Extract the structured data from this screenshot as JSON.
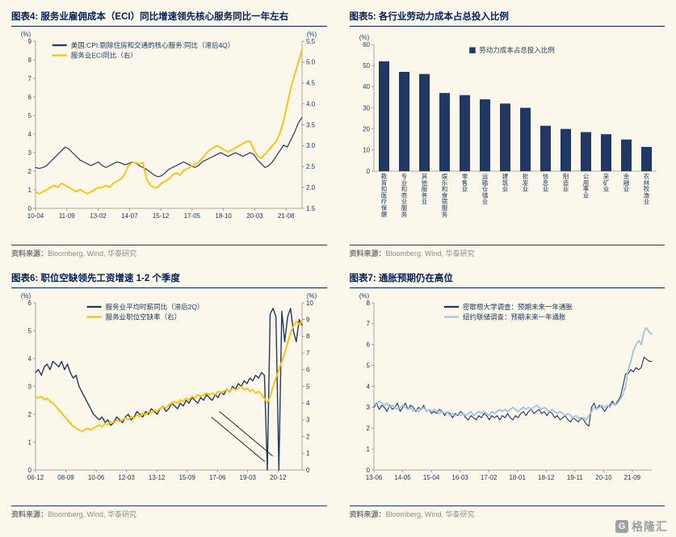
{
  "colors": {
    "navy": "#1F3864",
    "gold": "#FFC000",
    "light_blue": "#9DC3E6",
    "title_navy": "#00205B",
    "axis_gray": "#8F8F8F",
    "source_gray": "#8C8C8C",
    "background": "#FCF7EB"
  },
  "watermark": {
    "icon": "G",
    "text": "格隆汇"
  },
  "panels": [
    {
      "title": "图表4:  服务业雇佣成本（ECI）同比增速领先核心服务同比一年左右",
      "source_label": "资料来源：",
      "source": "Bloomberg, Wind, 华泰研究"
    },
    {
      "title": "图表5:  各行业劳动力成本占总投入比例",
      "source_label": "资料来源：",
      "source": "Bloomberg, Wind, 华泰研究"
    },
    {
      "title": "图表6:  职位空缺领先工资增速 1-2 个季度",
      "source_label": "资料来源：",
      "source": "Bloomberg, Wind, 华泰研究"
    },
    {
      "title": "图表7:  通胀预期仍在高位",
      "source_label": "资料来源：",
      "source": "Bloomberg, Wind, 华泰研究"
    }
  ],
  "chart_data": [
    {
      "type": "line",
      "title": "服务业雇佣成本（ECI）同比增速领先核心服务同比一年左右",
      "left_axis": {
        "label": "(%)",
        "min": 0,
        "max": 9,
        "step": 1
      },
      "right_axis": {
        "label": "(%)",
        "min": 1.5,
        "max": 5.5,
        "step": 0.5
      },
      "x_ticks": [
        "10-04",
        "11-09",
        "13-02",
        "14-07",
        "15-12",
        "17-05",
        "18-10",
        "20-03",
        "21-08"
      ],
      "x_tick_end": 0.94,
      "legend": {
        "x": 0.13,
        "y": 8,
        "marker": "line"
      },
      "series": [
        {
          "name": "美国:CPI:剔除住房和交通的核心服务:同比（滞后4Q）",
          "axis": "left",
          "color": "#1F3864",
          "width": 1.2,
          "values": [
            2.2,
            2.15,
            2.2,
            2.3,
            2.5,
            2.7,
            2.9,
            3.1,
            3.3,
            3.2,
            3.0,
            2.8,
            2.6,
            2.5,
            2.4,
            2.3,
            2.4,
            2.5,
            2.3,
            2.2,
            2.3,
            2.4,
            2.5,
            2.45,
            2.35,
            2.4,
            2.5,
            2.45,
            2.3,
            2.2,
            2.1,
            1.95,
            1.8,
            1.7,
            1.75,
            1.9,
            2.1,
            2.2,
            2.3,
            2.4,
            2.5,
            2.4,
            2.3,
            2.2,
            2.3,
            2.5,
            2.6,
            2.7,
            2.8,
            2.9,
            3.0,
            2.9,
            2.8,
            2.9,
            3.0,
            2.9,
            2.8,
            2.9,
            3.0,
            2.9,
            2.6,
            2.4,
            2.2,
            2.3,
            2.5,
            2.8,
            3.1,
            3.4,
            3.3,
            3.7,
            4.1,
            4.6,
            4.9
          ]
        },
        {
          "name": "服务业ECI同比（右）",
          "axis": "right",
          "color": "#FFC000",
          "width": 1.8,
          "values": [
            1.9,
            1.85,
            1.9,
            1.95,
            2.0,
            2.05,
            2.0,
            2.1,
            2.05,
            2.0,
            1.95,
            1.9,
            1.95,
            1.9,
            1.85,
            1.9,
            1.95,
            2.0,
            2.0,
            2.05,
            2.0,
            2.1,
            2.15,
            2.2,
            2.3,
            2.5,
            2.6,
            2.6,
            2.55,
            2.6,
            2.2,
            2.05,
            2.0,
            2.0,
            2.1,
            2.15,
            2.2,
            2.3,
            2.35,
            2.3,
            2.4,
            2.45,
            2.5,
            2.55,
            2.6,
            2.7,
            2.8,
            2.9,
            2.95,
            3.0,
            2.95,
            2.9,
            2.85,
            2.9,
            2.95,
            3.0,
            3.05,
            3.1,
            3.1,
            2.9,
            2.75,
            2.7,
            2.8,
            2.9,
            3.0,
            3.1,
            3.3,
            3.6,
            4.0,
            4.4,
            4.7,
            5.0,
            5.3
          ]
        }
      ]
    },
    {
      "type": "bar",
      "title": "各行业劳动力成本占总投入比例",
      "left_axis": {
        "label": "(%)",
        "min": 0,
        "max": 60,
        "step": 10
      },
      "categories": [
        "教育和医疗保健",
        "专业和商业服务",
        "其他服务业",
        "娱乐和食宿服务",
        "零售业",
        "运输仓储业",
        "建筑业",
        "批发业",
        "信息业",
        "制造业",
        "公用事业",
        "采矿业",
        "金融业",
        "农林牧渔业"
      ],
      "legend": {
        "x": 0.38,
        "y": 10,
        "marker": "square"
      },
      "series": [
        {
          "name": "劳动力成本占总投入比例",
          "color": "#1F3864",
          "values": [
            52,
            47,
            46,
            37,
            36,
            34,
            32,
            30,
            21.5,
            20,
            18.5,
            17.5,
            15,
            11.5
          ]
        }
      ]
    },
    {
      "type": "line",
      "title": "职位空缺领先工资增速 1-2 个季度",
      "left_axis": {
        "label": "(%)",
        "min": 0,
        "max": 6,
        "step": 1
      },
      "right_axis": {
        "label": "(%)",
        "min": 0,
        "max": 10,
        "step": 1
      },
      "x_ticks": [
        "06-12",
        "08-09",
        "10-06",
        "12-03",
        "13-12",
        "15-09",
        "17-06",
        "19-03",
        "20-12"
      ],
      "x_tick_end": 0.91,
      "legend": {
        "x": 0.24,
        "y": 8,
        "marker": "line"
      },
      "break_lines": [
        [
          0.66,
          1.9,
          0.86,
          0.3
        ],
        [
          0.69,
          2.1,
          0.89,
          0.5
        ]
      ],
      "series": [
        {
          "name": "服务业平均时薪同比（滞后2Q）",
          "axis": "left",
          "color": "#1F3864",
          "width": 1.4,
          "values": [
            3.5,
            3.6,
            3.4,
            3.7,
            3.8,
            3.6,
            3.9,
            3.8,
            3.7,
            3.9,
            3.6,
            3.8,
            3.5,
            3.3,
            3.4,
            3.0,
            2.8,
            2.6,
            2.4,
            2.2,
            2.0,
            1.9,
            1.8,
            1.9,
            1.7,
            1.8,
            1.6,
            1.7,
            1.9,
            1.8,
            1.7,
            1.9,
            2.0,
            1.8,
            1.9,
            2.1,
            2.0,
            1.9,
            2.1,
            2.0,
            2.2,
            2.1,
            2.0,
            2.2,
            2.3,
            2.1,
            2.2,
            2.4,
            2.3,
            2.2,
            2.4,
            2.3,
            2.5,
            2.4,
            2.6,
            2.5,
            2.4,
            2.6,
            2.5,
            2.7,
            2.6,
            2.5,
            2.7,
            2.6,
            2.8,
            2.7,
            2.9,
            2.8,
            3.0,
            2.9,
            3.1,
            3.0,
            3.2,
            3.1,
            3.3,
            3.2,
            3.4,
            3.3,
            3.5,
            3.4,
            0.0,
            5.6,
            5.8,
            5.5,
            0.0,
            5.7,
            4.6,
            5.5,
            5.8,
            5.0,
            4.6,
            5.4,
            5.2
          ]
        },
        {
          "name": "服务业职位空缺率（右）",
          "axis": "right",
          "color": "#FFC000",
          "width": 1.8,
          "values": [
            4.4,
            4.3,
            4.4,
            4.2,
            4.3,
            4.1,
            4.0,
            3.8,
            3.6,
            3.4,
            3.2,
            3.0,
            2.8,
            2.6,
            2.5,
            2.4,
            2.3,
            2.4,
            2.5,
            2.4,
            2.5,
            2.6,
            2.7,
            2.6,
            2.8,
            2.7,
            2.9,
            2.8,
            3.0,
            2.9,
            3.0,
            3.1,
            3.0,
            3.2,
            3.1,
            3.3,
            3.2,
            3.4,
            3.3,
            3.5,
            3.4,
            3.6,
            3.5,
            3.7,
            3.8,
            3.7,
            3.9,
            4.0,
            4.1,
            4.0,
            4.2,
            4.1,
            4.3,
            4.2,
            4.4,
            4.3,
            4.5,
            4.4,
            4.5,
            4.6,
            4.5,
            4.6,
            4.5,
            4.7,
            4.6,
            4.7,
            4.8,
            4.7,
            4.9,
            4.8,
            4.9,
            5.0,
            4.8,
            4.9,
            4.7,
            4.8,
            4.6,
            4.7,
            4.5,
            4.3,
            4.0,
            4.4,
            5.0,
            5.5,
            6.0,
            6.5,
            7.0,
            7.6,
            8.2,
            8.6,
            8.9,
            8.7,
            8.9
          ]
        }
      ]
    },
    {
      "type": "line",
      "title": "通胀预期仍在高位",
      "left_axis": {
        "label": "(%)",
        "min": 0,
        "max": 8,
        "step": 1
      },
      "x_ticks": [
        "13-06",
        "14-05",
        "15-04",
        "16-03",
        "17-02",
        "18-01",
        "18-12",
        "19-11",
        "20-10",
        "21-09"
      ],
      "x_tick_end": 0.93,
      "legend": {
        "x": 0.3,
        "y": 8,
        "marker": "line"
      },
      "series": [
        {
          "name": "密歇根大学调查：预期未来一年通胀",
          "axis": "left",
          "color": "#1F3864",
          "width": 1.1,
          "values": [
            3.0,
            3.2,
            2.9,
            3.1,
            3.0,
            2.8,
            3.1,
            2.9,
            3.0,
            3.2,
            2.8,
            3.0,
            3.2,
            2.9,
            3.1,
            3.0,
            2.8,
            3.0,
            2.9,
            3.1,
            2.8,
            2.9,
            2.7,
            2.8,
            2.7,
            2.9,
            2.8,
            2.6,
            2.8,
            2.7,
            2.5,
            2.7,
            2.6,
            2.8,
            2.7,
            2.5,
            2.4,
            2.6,
            2.5,
            2.4,
            2.6,
            2.5,
            2.7,
            2.6,
            2.4,
            2.6,
            2.5,
            2.6,
            2.4,
            2.6,
            2.5,
            2.7,
            2.5,
            2.4,
            2.6,
            2.5,
            2.7,
            2.8,
            2.6,
            2.8,
            2.9,
            2.7,
            2.8,
            2.9,
            2.7,
            2.8,
            2.6,
            2.8,
            2.7,
            2.5,
            2.6,
            2.4,
            2.5,
            2.6,
            2.4,
            2.3,
            2.5,
            2.4,
            2.3,
            2.5,
            2.4,
            2.2,
            2.1,
            3.0,
            3.2,
            2.9,
            3.1,
            3.0,
            2.8,
            3.0,
            3.1,
            3.3,
            3.1,
            3.3,
            3.5,
            4.0,
            4.6,
            4.6,
            4.8,
            4.7,
            4.9,
            4.8,
            4.9,
            5.4,
            5.3,
            5.2,
            5.2
          ]
        },
        {
          "name": "纽约联储调查：预期未来一年通胀",
          "axis": "left",
          "color": "#9DC3E6",
          "width": 1.8,
          "values": [
            3.2,
            3.1,
            3.3,
            3.2,
            3.1,
            3.2,
            3.0,
            3.1,
            3.0,
            2.9,
            3.0,
            3.1,
            3.0,
            2.9,
            3.0,
            2.8,
            2.9,
            2.8,
            2.9,
            3.0,
            2.8,
            2.9,
            2.8,
            2.9,
            2.8,
            2.7,
            2.8,
            2.7,
            2.8,
            2.6,
            2.7,
            2.6,
            2.7,
            2.6,
            2.7,
            2.6,
            2.7,
            2.8,
            2.6,
            2.7,
            2.8,
            2.7,
            2.8,
            2.7,
            2.6,
            2.8,
            2.7,
            2.8,
            2.9,
            2.8,
            2.9,
            2.8,
            2.9,
            3.0,
            2.9,
            2.8,
            2.9,
            3.0,
            2.9,
            3.0,
            2.9,
            3.0,
            3.1,
            3.0,
            2.9,
            3.0,
            2.9,
            2.8,
            2.9,
            2.8,
            2.7,
            2.8,
            2.7,
            2.6,
            2.7,
            2.6,
            2.5,
            2.6,
            2.5,
            2.4,
            2.5,
            2.4,
            2.6,
            2.8,
            3.0,
            2.9,
            3.0,
            3.1,
            3.0,
            3.1,
            3.0,
            3.2,
            3.1,
            3.2,
            3.4,
            3.6,
            4.0,
            4.8,
            5.2,
            5.7,
            6.0,
            6.2,
            6.0,
            6.6,
            6.8,
            6.6,
            6.5
          ]
        }
      ]
    }
  ]
}
